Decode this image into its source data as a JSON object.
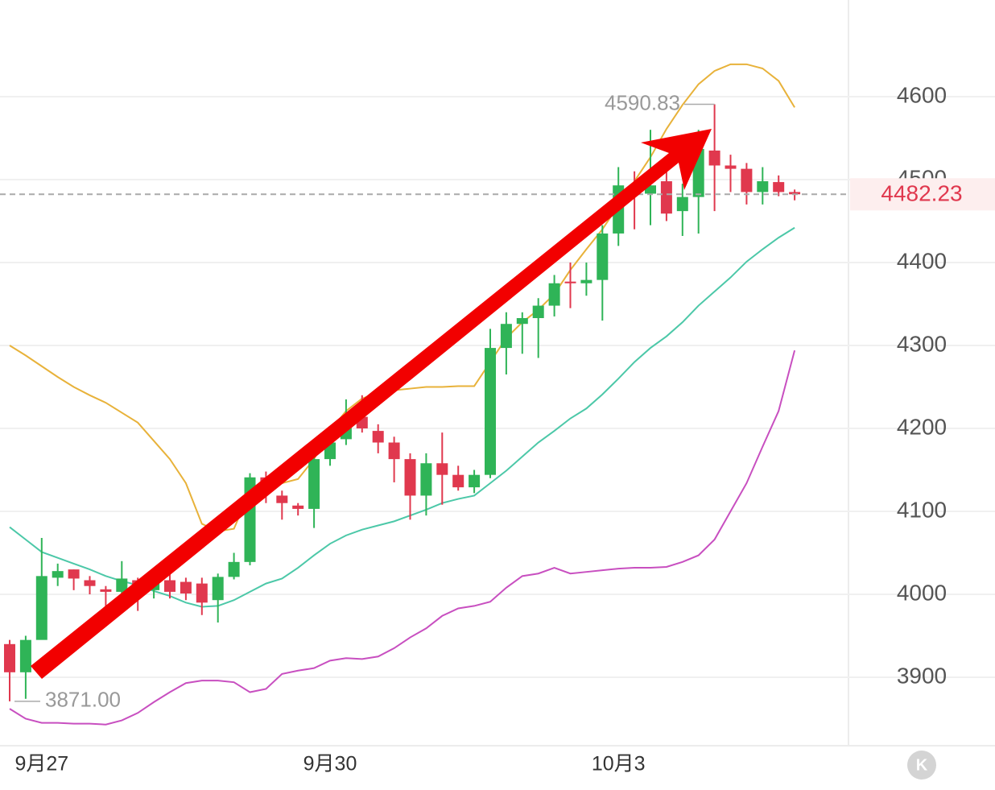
{
  "chart_data": {
    "type": "candlestick",
    "categories": [
      null,
      null,
      "9月27",
      null,
      null,
      null,
      null,
      null,
      null,
      null,
      null,
      null,
      null,
      null,
      null,
      null,
      null,
      null,
      null,
      null,
      "9月30",
      null,
      null,
      null,
      null,
      null,
      null,
      null,
      null,
      null,
      null,
      null,
      null,
      null,
      null,
      null,
      null,
      null,
      "10月3",
      null,
      null,
      null,
      null,
      null,
      null,
      null,
      null,
      null,
      null,
      null
    ],
    "open": [
      3940,
      3906,
      3945,
      4020,
      4030,
      4017,
      4006,
      4003,
      4017,
      4005,
      4017,
      4015,
      4013,
      3993,
      4021,
      4039,
      4141,
      4119,
      4107,
      4103,
      4163,
      4187,
      4214,
      4197,
      4183,
      4163,
      4119,
      4158,
      4144,
      4129,
      4144,
      4297,
      4326,
      4333,
      4348,
      4377,
      4375,
      4379,
      4435,
      4493,
      4483,
      4498,
      4462,
      4479,
      4535,
      4517,
      4513,
      4485,
      4497,
      4485
    ],
    "high": [
      3945,
      3950,
      4068,
      4037,
      4030,
      4022,
      4010,
      4040,
      4020,
      4020,
      4025,
      4020,
      4020,
      4025,
      4050,
      4146,
      4148,
      4125,
      4110,
      4180,
      4200,
      4235,
      4240,
      4205,
      4190,
      4170,
      4170,
      4195,
      4155,
      4150,
      4320,
      4340,
      4340,
      4357,
      4385,
      4400,
      4400,
      4445,
      4515,
      4510,
      4560,
      4510,
      4495,
      4560,
      4590.83,
      4530,
      4520,
      4515,
      4505,
      4488
    ],
    "low": [
      3871,
      3874,
      3948,
      4010,
      4005,
      4000,
      3982,
      4000,
      3980,
      3995,
      3995,
      3993,
      3975,
      3966,
      4018,
      4035,
      4110,
      4090,
      4095,
      4080,
      4155,
      4180,
      4195,
      4170,
      4135,
      4090,
      4095,
      4108,
      4125,
      4122,
      4140,
      4265,
      4290,
      4285,
      4335,
      4345,
      4360,
      4330,
      4420,
      4440,
      4445,
      4450,
      4432,
      4435,
      4462,
      4485,
      4470,
      4470,
      4480,
      4475
    ],
    "close": [
      3906,
      3945,
      4022,
      4028,
      4019,
      4010,
      4003,
      4019,
      4008,
      4017,
      4003,
      4001,
      3990,
      4021,
      4039,
      4141,
      4129,
      4110,
      4103,
      4163,
      4183,
      4212,
      4200,
      4183,
      4163,
      4119,
      4158,
      4144,
      4129,
      4144,
      4297,
      4326,
      4333,
      4348,
      4375,
      4375,
      4379,
      4435,
      4493,
      4483,
      4493,
      4459,
      4479,
      4537,
      4517,
      4513,
      4485,
      4498,
      4485,
      4482.23
    ],
    "up_color": "#2fb457",
    "down_color": "#e0384e",
    "lines": [
      {
        "color": "#e8b23a",
        "values": [
          4300,
          4288,
          4275,
          4262,
          4250,
          4240,
          4231,
          4219,
          4207,
          4185,
          4163,
          4134,
          4085,
          4076,
          4079,
          4124,
          4134,
          4134,
          4139,
          4163,
          4197,
          4221,
          4236,
          4243,
          4246,
          4248,
          4250,
          4250,
          4251,
          4251,
          4280,
          4309,
          4328,
          4343,
          4362,
          4391,
          4416,
          4440,
          4469,
          4498,
          4527,
          4561,
          4590,
          4615,
          4631,
          4639,
          4639,
          4634,
          4619,
          4587
        ]
      },
      {
        "color": "#4cc8a8",
        "values": [
          4081,
          4066,
          4051,
          4044,
          4037,
          4030,
          4022,
          4016,
          4011,
          4004,
          3998,
          3990,
          3985,
          3986,
          3993,
          4003,
          4013,
          4019,
          4032,
          4047,
          4061,
          4071,
          4078,
          4083,
          4088,
          4095,
          4102,
          4110,
          4115,
          4119,
          4134,
          4149,
          4166,
          4183,
          4197,
          4212,
          4224,
          4241,
          4260,
          4280,
          4297,
          4311,
          4328,
          4348,
          4365,
          4382,
          4401,
          4416,
          4430,
          4442
        ]
      },
      {
        "color": "#c84fc0",
        "values": [
          3862,
          3850,
          3845,
          3845,
          3844,
          3844,
          3843,
          3848,
          3857,
          3870,
          3882,
          3893,
          3896,
          3896,
          3894,
          3882,
          3886,
          3904,
          3908,
          3911,
          3920,
          3923,
          3922,
          3925,
          3935,
          3948,
          3959,
          3974,
          3983,
          3986,
          3991,
          4008,
          4022,
          4025,
          4032,
          4025,
          4027,
          4029,
          4031,
          4032,
          4032,
          4033,
          4039,
          4047,
          4066,
          4100,
          4134,
          4178,
          4221,
          4294
        ]
      }
    ],
    "ylim": [
      3800,
      4700
    ],
    "yticks": [
      3900,
      4000,
      4100,
      4200,
      4300,
      4400,
      4500,
      4600
    ],
    "grid": true,
    "last_price": 4482.23,
    "high_mark": {
      "value": 4590.83,
      "label": "4590.83"
    },
    "low_mark": {
      "value": 3871,
      "label": "3871.00"
    },
    "reset_button": "K"
  }
}
